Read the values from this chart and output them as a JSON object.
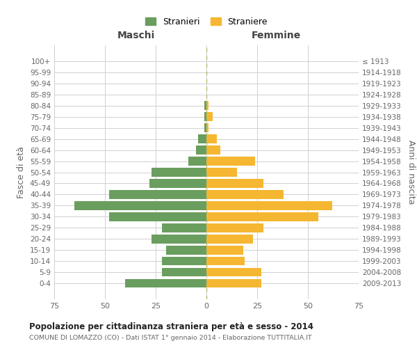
{
  "age_groups": [
    "0-4",
    "5-9",
    "10-14",
    "15-19",
    "20-24",
    "25-29",
    "30-34",
    "35-39",
    "40-44",
    "45-49",
    "50-54",
    "55-59",
    "60-64",
    "65-69",
    "70-74",
    "75-79",
    "80-84",
    "85-89",
    "90-94",
    "95-99",
    "100+"
  ],
  "birth_years": [
    "2009-2013",
    "2004-2008",
    "1999-2003",
    "1994-1998",
    "1989-1993",
    "1984-1988",
    "1979-1983",
    "1974-1978",
    "1969-1973",
    "1964-1968",
    "1959-1963",
    "1954-1958",
    "1949-1953",
    "1944-1948",
    "1939-1943",
    "1934-1938",
    "1929-1933",
    "1924-1928",
    "1919-1923",
    "1914-1918",
    "≤ 1913"
  ],
  "males": [
    40,
    22,
    22,
    20,
    27,
    22,
    48,
    65,
    48,
    28,
    27,
    9,
    5,
    4,
    1,
    1,
    1,
    0,
    0,
    0,
    0
  ],
  "females": [
    27,
    27,
    19,
    18,
    23,
    28,
    55,
    62,
    38,
    28,
    15,
    24,
    7,
    5,
    1,
    3,
    1,
    0,
    0,
    0,
    0
  ],
  "male_color": "#6a9e5e",
  "female_color": "#f5b731",
  "background_color": "#ffffff",
  "grid_color": "#d0d0d0",
  "title": "Popolazione per cittadinanza straniera per età e sesso - 2014",
  "subtitle": "COMUNE DI LOMAZZO (CO) - Dati ISTAT 1° gennaio 2014 - Elaborazione TUTTITALIA.IT",
  "ylabel_left": "Fasce di età",
  "ylabel_right": "Anni di nascita",
  "xlabel_left": "Maschi",
  "xlabel_right": "Femmine",
  "legend_male": "Stranieri",
  "legend_female": "Straniere",
  "xlim": 75,
  "dashed_line_color": "#b8b86e"
}
